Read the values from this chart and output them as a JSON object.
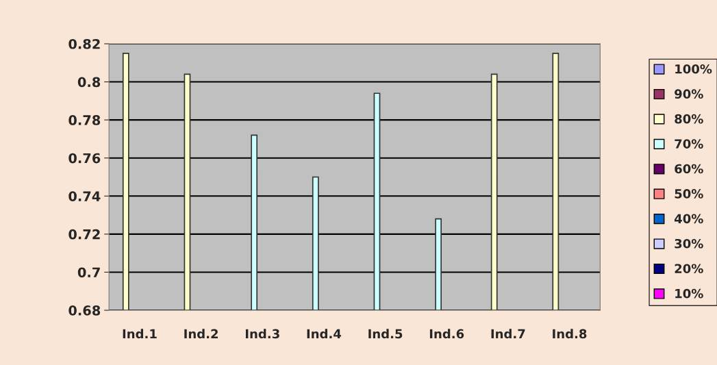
{
  "chart_data": {
    "type": "bar",
    "categories": [
      "Ind.1",
      "Ind.2",
      "Ind.3",
      "Ind.4",
      "Ind.5",
      "Ind.6",
      "Ind.7",
      "Ind.8"
    ],
    "series": [
      {
        "name": "100%",
        "color": "#9999ff",
        "values": [
          null,
          null,
          null,
          null,
          null,
          null,
          null,
          null
        ]
      },
      {
        "name": "90%",
        "color": "#993366",
        "values": [
          null,
          null,
          null,
          null,
          null,
          null,
          null,
          null
        ]
      },
      {
        "name": "80%",
        "color": "#ffffcc",
        "values": [
          0.815,
          0.804,
          null,
          null,
          null,
          null,
          0.804,
          0.815
        ]
      },
      {
        "name": "70%",
        "color": "#ccffff",
        "values": [
          null,
          null,
          0.772,
          0.75,
          0.794,
          0.728,
          null,
          null
        ]
      },
      {
        "name": "60%",
        "color": "#660066",
        "values": [
          null,
          null,
          null,
          null,
          null,
          null,
          null,
          null
        ]
      },
      {
        "name": "50%",
        "color": "#ff8080",
        "values": [
          null,
          null,
          null,
          null,
          null,
          null,
          null,
          null
        ]
      },
      {
        "name": "40%",
        "color": "#0066cc",
        "values": [
          null,
          null,
          null,
          null,
          null,
          null,
          null,
          null
        ]
      },
      {
        "name": "30%",
        "color": "#ccccff",
        "values": [
          null,
          null,
          null,
          null,
          null,
          null,
          null,
          null
        ]
      },
      {
        "name": "20%",
        "color": "#000080",
        "values": [
          null,
          null,
          null,
          null,
          null,
          null,
          null,
          null
        ]
      },
      {
        "name": "10%",
        "color": "#ff00ff",
        "values": [
          null,
          null,
          null,
          null,
          null,
          null,
          null,
          null
        ]
      }
    ],
    "ylim": [
      0.68,
      0.82
    ],
    "yticks": [
      0.68,
      0.7,
      0.72,
      0.74,
      0.76,
      0.78,
      0.8,
      0.82
    ],
    "grid": "y",
    "legend": "right"
  }
}
